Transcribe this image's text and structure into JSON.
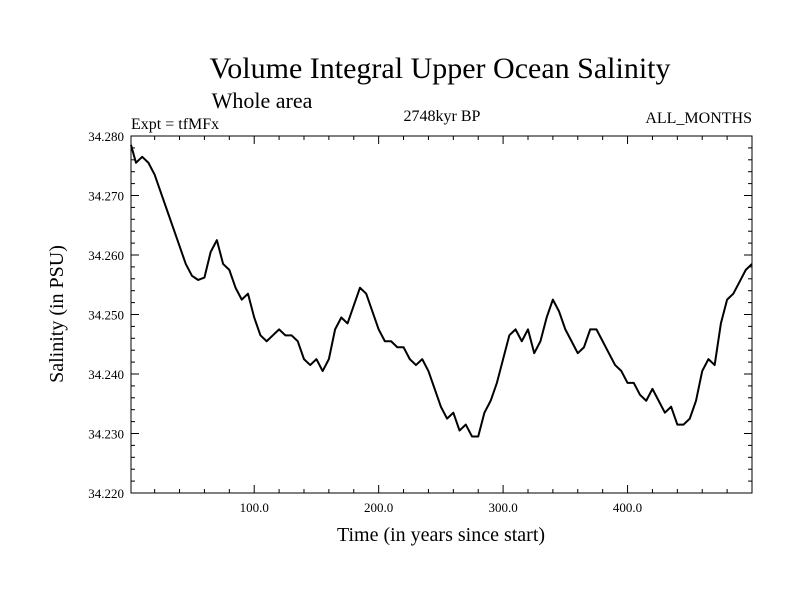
{
  "chart_data": {
    "type": "line",
    "title": "Volume Integral Upper Ocean Salinity",
    "subtitle": "Whole area",
    "experiment_label": "Expt = tfMFx",
    "period_label": "2748kyr BP",
    "months_label": "ALL_MONTHS",
    "xlabel": "Time (in years since start)",
    "ylabel": "Salinity (in PSU)",
    "xlim": [
      1,
      500
    ],
    "ylim": [
      34.22,
      34.28
    ],
    "x_ticks": [
      100,
      200,
      300,
      400
    ],
    "x_tick_labels": [
      "100.0",
      "200.0",
      "300.0",
      "400.0"
    ],
    "y_ticks": [
      34.22,
      34.23,
      34.24,
      34.25,
      34.26,
      34.27,
      34.28
    ],
    "y_tick_labels": [
      "34.220",
      "34.230",
      "34.240",
      "34.250",
      "34.260",
      "34.270",
      "34.280"
    ],
    "grid": false,
    "series": [
      {
        "name": "salinity",
        "color": "#000000",
        "x": [
          1,
          5,
          10,
          15,
          20,
          25,
          30,
          35,
          40,
          45,
          50,
          55,
          60,
          65,
          70,
          75,
          80,
          85,
          90,
          95,
          100,
          105,
          110,
          115,
          120,
          125,
          130,
          135,
          140,
          145,
          150,
          155,
          160,
          165,
          170,
          175,
          180,
          185,
          190,
          195,
          200,
          205,
          210,
          215,
          220,
          225,
          230,
          235,
          240,
          245,
          250,
          255,
          260,
          265,
          270,
          275,
          280,
          285,
          290,
          295,
          300,
          305,
          310,
          315,
          320,
          325,
          330,
          335,
          340,
          345,
          350,
          355,
          360,
          365,
          370,
          375,
          380,
          385,
          390,
          395,
          400,
          405,
          410,
          415,
          420,
          425,
          430,
          435,
          440,
          445,
          450,
          455,
          460,
          465,
          470,
          475,
          480,
          485,
          490,
          495,
          500
        ],
        "values": [
          34.2785,
          34.2755,
          34.2765,
          34.2755,
          34.2735,
          34.2705,
          34.2675,
          34.2645,
          34.2615,
          34.2585,
          34.2565,
          34.2558,
          34.2562,
          34.2605,
          34.2625,
          34.2585,
          34.2575,
          34.2545,
          34.2525,
          34.2535,
          34.2495,
          34.2465,
          34.2455,
          34.2465,
          34.2475,
          34.2465,
          34.2465,
          34.2455,
          34.2425,
          34.2415,
          34.2425,
          34.2405,
          34.2425,
          34.2475,
          34.2495,
          34.2485,
          34.2515,
          34.2545,
          34.2535,
          34.2505,
          34.2475,
          34.2455,
          34.2455,
          34.2445,
          34.2445,
          34.2425,
          34.2415,
          34.2425,
          34.2405,
          34.2375,
          34.2345,
          34.2325,
          34.2335,
          34.2305,
          34.2315,
          34.2295,
          34.2295,
          34.2335,
          34.2355,
          34.2385,
          34.2425,
          34.2465,
          34.2475,
          34.2455,
          34.2475,
          34.2435,
          34.2455,
          34.2495,
          34.2525,
          34.2505,
          34.2475,
          34.2455,
          34.2435,
          34.2445,
          34.2475,
          34.2475,
          34.2455,
          34.2435,
          34.2415,
          34.2405,
          34.2385,
          34.2385,
          34.2365,
          34.2355,
          34.2375,
          34.2355,
          34.2335,
          34.2345,
          34.2315,
          34.2315,
          34.2325,
          34.2355,
          34.2405,
          34.2425,
          34.2415,
          34.2485,
          34.2525,
          34.2535,
          34.2555,
          34.2575,
          34.2585
        ]
      }
    ]
  }
}
